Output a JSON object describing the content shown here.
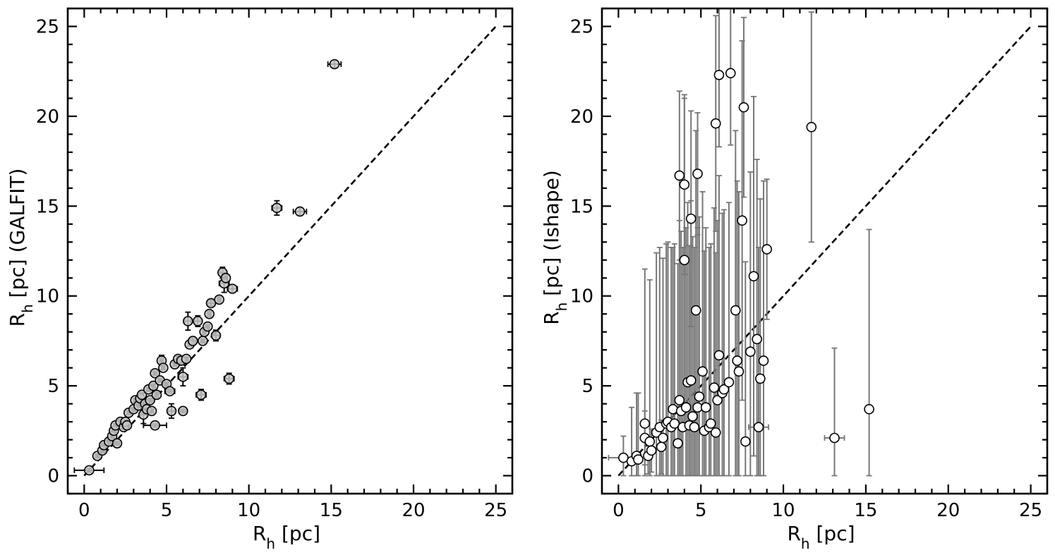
{
  "chart_data": [
    {
      "type": "scatter",
      "xlabel": "R_h [pc]",
      "ylabel": "R_h [pc] (GALFIT)",
      "xlim": [
        -1,
        26
      ],
      "ylim": [
        -1,
        26
      ],
      "xticks": [
        0,
        5,
        10,
        15,
        20,
        25
      ],
      "yticks": [
        0,
        5,
        10,
        15,
        20,
        25
      ],
      "marker_fill": "#c8c8c8",
      "errorbar_color": "#000000",
      "reference_line": [
        [
          0,
          0
        ],
        [
          25,
          25
        ]
      ],
      "points": [
        [
          0.3,
          0.3,
          0.9,
          0.1
        ],
        [
          0.8,
          1.1,
          0.1,
          0.1
        ],
        [
          1.1,
          1.4,
          0.1,
          0.1
        ],
        [
          1.2,
          1.7,
          0.15,
          0.1
        ],
        [
          1.5,
          1.9,
          0.1,
          0.1
        ],
        [
          1.7,
          2.2,
          0.1,
          0.1
        ],
        [
          1.8,
          2.5,
          0.1,
          0.1
        ],
        [
          2.0,
          1.8,
          0.15,
          0.1
        ],
        [
          1.9,
          2.8,
          0.1,
          0.1
        ],
        [
          2.2,
          3.0,
          0.1,
          0.1
        ],
        [
          2.4,
          2.7,
          0.1,
          0.1
        ],
        [
          2.5,
          3.0,
          0.1,
          0.1
        ],
        [
          2.6,
          2.8,
          0.15,
          0.1
        ],
        [
          2.7,
          3.5,
          0.1,
          0.1
        ],
        [
          3.0,
          3.7,
          0.1,
          0.1
        ],
        [
          3.1,
          4.2,
          0.1,
          0.1
        ],
        [
          3.3,
          3.9,
          0.1,
          0.1
        ],
        [
          3.4,
          4.3,
          0.1,
          0.1
        ],
        [
          3.5,
          4.5,
          0.1,
          0.1
        ],
        [
          3.6,
          3.4,
          0.2,
          0.5
        ],
        [
          3.7,
          4.0,
          0.1,
          0.15
        ],
        [
          3.8,
          3.7,
          0.1,
          0.1
        ],
        [
          3.9,
          4.8,
          0.1,
          0.1
        ],
        [
          4.0,
          4.2,
          0.1,
          0.1
        ],
        [
          4.1,
          3.6,
          0.1,
          0.1
        ],
        [
          4.2,
          5.0,
          0.1,
          0.1
        ],
        [
          4.3,
          5.7,
          0.1,
          0.1
        ],
        [
          4.3,
          2.8,
          0.7,
          0.1
        ],
        [
          4.4,
          4.5,
          0.1,
          0.15
        ],
        [
          4.6,
          5.3,
          0.1,
          0.1
        ],
        [
          4.7,
          6.4,
          0.1,
          0.3
        ],
        [
          4.8,
          6.0,
          0.1,
          0.1
        ],
        [
          5.0,
          5.1,
          0.1,
          0.1
        ],
        [
          5.2,
          4.7,
          0.3,
          0.1
        ],
        [
          5.3,
          3.6,
          0.2,
          0.4
        ],
        [
          5.5,
          6.2,
          0.1,
          0.1
        ],
        [
          5.7,
          6.5,
          0.1,
          0.15
        ],
        [
          5.9,
          6.4,
          0.1,
          0.2
        ],
        [
          6.0,
          5.5,
          0.3,
          0.5
        ],
        [
          6.0,
          3.6,
          0.2,
          0.1
        ],
        [
          6.2,
          6.5,
          0.1,
          0.1
        ],
        [
          6.3,
          8.6,
          0.2,
          0.5
        ],
        [
          6.4,
          7.3,
          0.1,
          0.1
        ],
        [
          6.6,
          7.5,
          0.2,
          0.15
        ],
        [
          6.9,
          8.6,
          0.2,
          0.3
        ],
        [
          7.1,
          4.5,
          0.3,
          0.3
        ],
        [
          7.2,
          7.5,
          0.1,
          0.1
        ],
        [
          7.3,
          8.0,
          0.1,
          0.15
        ],
        [
          7.5,
          8.3,
          0.1,
          0.1
        ],
        [
          7.6,
          9.0,
          0.1,
          0.15
        ],
        [
          7.7,
          9.6,
          0.2,
          0.15
        ],
        [
          8.0,
          7.8,
          0.2,
          0.3
        ],
        [
          8.2,
          9.8,
          0.1,
          0.15
        ],
        [
          8.4,
          11.3,
          0.2,
          0.3
        ],
        [
          8.5,
          10.7,
          0.3,
          0.5
        ],
        [
          8.6,
          11.0,
          0.1,
          0.15
        ],
        [
          8.8,
          5.4,
          0.3,
          0.3
        ],
        [
          9.0,
          10.4,
          0.3,
          0.2
        ],
        [
          11.7,
          14.9,
          0.3,
          0.4
        ],
        [
          13.1,
          14.7,
          0.4,
          0.2
        ],
        [
          15.2,
          22.9,
          0.4,
          0.2
        ]
      ]
    },
    {
      "type": "scatter",
      "xlabel": "R_h [pc]",
      "ylabel": "R_h [pc] (Ishape)",
      "xlim": [
        -1,
        26
      ],
      "ylim": [
        -1,
        26
      ],
      "xticks": [
        0,
        5,
        10,
        15,
        20,
        25
      ],
      "yticks": [
        0,
        5,
        10,
        15,
        20,
        25
      ],
      "marker_fill": "#ffffff",
      "errorbar_color": "#777777",
      "reference_line": [
        [
          0,
          0
        ],
        [
          25,
          25
        ]
      ],
      "points": [
        [
          0.3,
          1.0,
          0.9,
          1.2
        ],
        [
          0.8,
          0.8,
          0.1,
          3.0
        ],
        [
          1.1,
          1.1,
          0.1,
          3.5
        ],
        [
          1.2,
          0.9,
          0.15,
          3.7
        ],
        [
          1.6,
          2.9,
          0.1,
          8.6
        ],
        [
          1.6,
          2.1,
          0.15,
          1.5
        ],
        [
          1.8,
          1.1,
          0.1,
          1.0
        ],
        [
          1.9,
          1.9,
          0.1,
          9.0
        ],
        [
          2.0,
          1.4,
          0.15,
          1.2
        ],
        [
          2.3,
          2.4,
          0.1,
          10.0
        ],
        [
          2.5,
          2.7,
          0.1,
          10.0
        ],
        [
          2.6,
          1.6,
          0.1,
          1.5
        ],
        [
          2.7,
          2.1,
          0.15,
          10.0
        ],
        [
          2.9,
          2.9,
          0.1,
          10.0
        ],
        [
          3.0,
          3.0,
          0.1,
          10.0
        ],
        [
          3.2,
          2.7,
          0.1,
          10.0
        ],
        [
          3.3,
          3.7,
          0.1,
          9.0
        ],
        [
          3.4,
          2.9,
          0.1,
          10.0
        ],
        [
          3.6,
          1.8,
          0.2,
          10.0
        ],
        [
          3.7,
          4.2,
          0.1,
          10.0
        ],
        [
          3.7,
          16.7,
          0.1,
          4.7
        ],
        [
          3.8,
          3.6,
          0.1,
          10.0
        ],
        [
          3.9,
          2.7,
          0.1,
          10.0
        ],
        [
          4.0,
          12.0,
          0.1,
          9.0
        ],
        [
          4.0,
          16.2,
          0.1,
          5.0
        ],
        [
          4.1,
          3.8,
          0.1,
          10.0
        ],
        [
          4.2,
          5.2,
          0.1,
          10.0
        ],
        [
          4.3,
          2.8,
          0.1,
          10.0
        ],
        [
          4.4,
          5.3,
          0.1,
          10.0
        ],
        [
          4.4,
          14.3,
          0.1,
          6.0
        ],
        [
          4.5,
          3.3,
          0.1,
          10.0
        ],
        [
          4.6,
          2.7,
          0.1,
          10.0
        ],
        [
          4.7,
          9.2,
          0.1,
          10.0
        ],
        [
          4.8,
          16.8,
          0.1,
          3.4
        ],
        [
          4.8,
          3.8,
          0.1,
          10.0
        ],
        [
          4.9,
          4.4,
          0.1,
          10.0
        ],
        [
          5.1,
          5.8,
          0.1,
          10.0
        ],
        [
          5.2,
          2.5,
          0.1,
          10.0
        ],
        [
          5.3,
          3.8,
          0.1,
          10.0
        ],
        [
          5.5,
          2.7,
          0.1,
          10.0
        ],
        [
          5.6,
          2.9,
          0.1,
          10.0
        ],
        [
          5.8,
          4.9,
          0.1,
          10.0
        ],
        [
          5.9,
          2.4,
          0.1,
          10.0
        ],
        [
          5.9,
          19.6,
          0.1,
          6.0
        ],
        [
          6.0,
          4.2,
          0.1,
          10.0
        ],
        [
          6.1,
          6.7,
          0.1,
          10.0
        ],
        [
          6.1,
          22.3,
          0.1,
          4.0
        ],
        [
          6.3,
          4.6,
          0.1,
          10.0
        ],
        [
          6.4,
          4.8,
          0.1,
          10.0
        ],
        [
          6.7,
          5.2,
          0.1,
          10.0
        ],
        [
          6.8,
          22.4,
          0.1,
          4.0
        ],
        [
          7.1,
          9.2,
          0.2,
          10.0
        ],
        [
          7.2,
          6.4,
          0.1,
          10.0
        ],
        [
          7.3,
          5.8,
          0.1,
          10.0
        ],
        [
          7.5,
          14.2,
          0.1,
          10.0
        ],
        [
          7.6,
          20.5,
          0.1,
          5.0
        ],
        [
          7.7,
          1.9,
          0.1,
          10.0
        ],
        [
          8.0,
          6.9,
          0.1,
          10.0
        ],
        [
          8.2,
          11.1,
          0.1,
          10.0
        ],
        [
          8.4,
          7.6,
          0.2,
          10.0
        ],
        [
          8.5,
          2.7,
          0.6,
          10.0
        ],
        [
          8.6,
          5.4,
          0.1,
          10.0
        ],
        [
          8.8,
          6.4,
          0.1,
          10.0
        ],
        [
          9.0,
          12.6,
          0.1,
          3.9
        ],
        [
          11.7,
          19.4,
          0.1,
          6.4
        ],
        [
          13.1,
          2.1,
          0.6,
          5.0
        ],
        [
          15.2,
          3.7,
          0.2,
          10.0
        ]
      ]
    }
  ]
}
